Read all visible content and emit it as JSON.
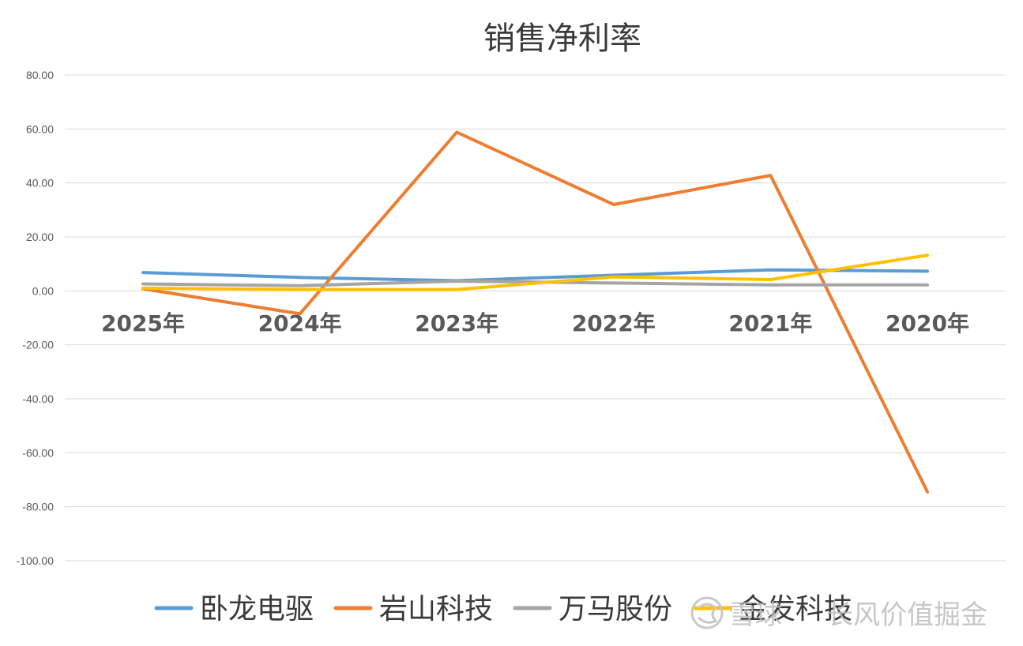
{
  "chart_data": {
    "type": "line",
    "title": "销售净利率",
    "xlabel": "",
    "ylabel": "",
    "categories": [
      "2025年",
      "2024年",
      "2023年",
      "2022年",
      "2021年",
      "2020年"
    ],
    "ylim": [
      -100,
      80
    ],
    "yticks": [
      80,
      60,
      40,
      20,
      0,
      -20,
      -40,
      -60,
      -80,
      -100
    ],
    "ytick_labels": [
      "80.00",
      "60.00",
      "40.00",
      "20.00",
      "0.00",
      "-20.00",
      "-40.00",
      "-60.00",
      "-80.00",
      "-100.00"
    ],
    "grid": true,
    "legend_position": "bottom",
    "series": [
      {
        "name": "卧龙电驱",
        "color": "#5b9bd5",
        "values": [
          6.8,
          5.0,
          3.8,
          5.8,
          7.8,
          7.3
        ]
      },
      {
        "name": "岩山科技",
        "color": "#ed7d31",
        "values": [
          0.8,
          -8.5,
          58.8,
          32.0,
          42.8,
          -74.5
        ]
      },
      {
        "name": "万马股份",
        "color": "#a5a5a5",
        "values": [
          2.6,
          1.9,
          3.6,
          2.9,
          2.2,
          2.2
        ]
      },
      {
        "name": "金发科技",
        "color": "#ffc000",
        "values": [
          1.0,
          0.5,
          0.5,
          5.2,
          4.2,
          13.2
        ]
      }
    ]
  },
  "watermark": {
    "brand": "雪球",
    "handle": "长风价值掘金"
  }
}
